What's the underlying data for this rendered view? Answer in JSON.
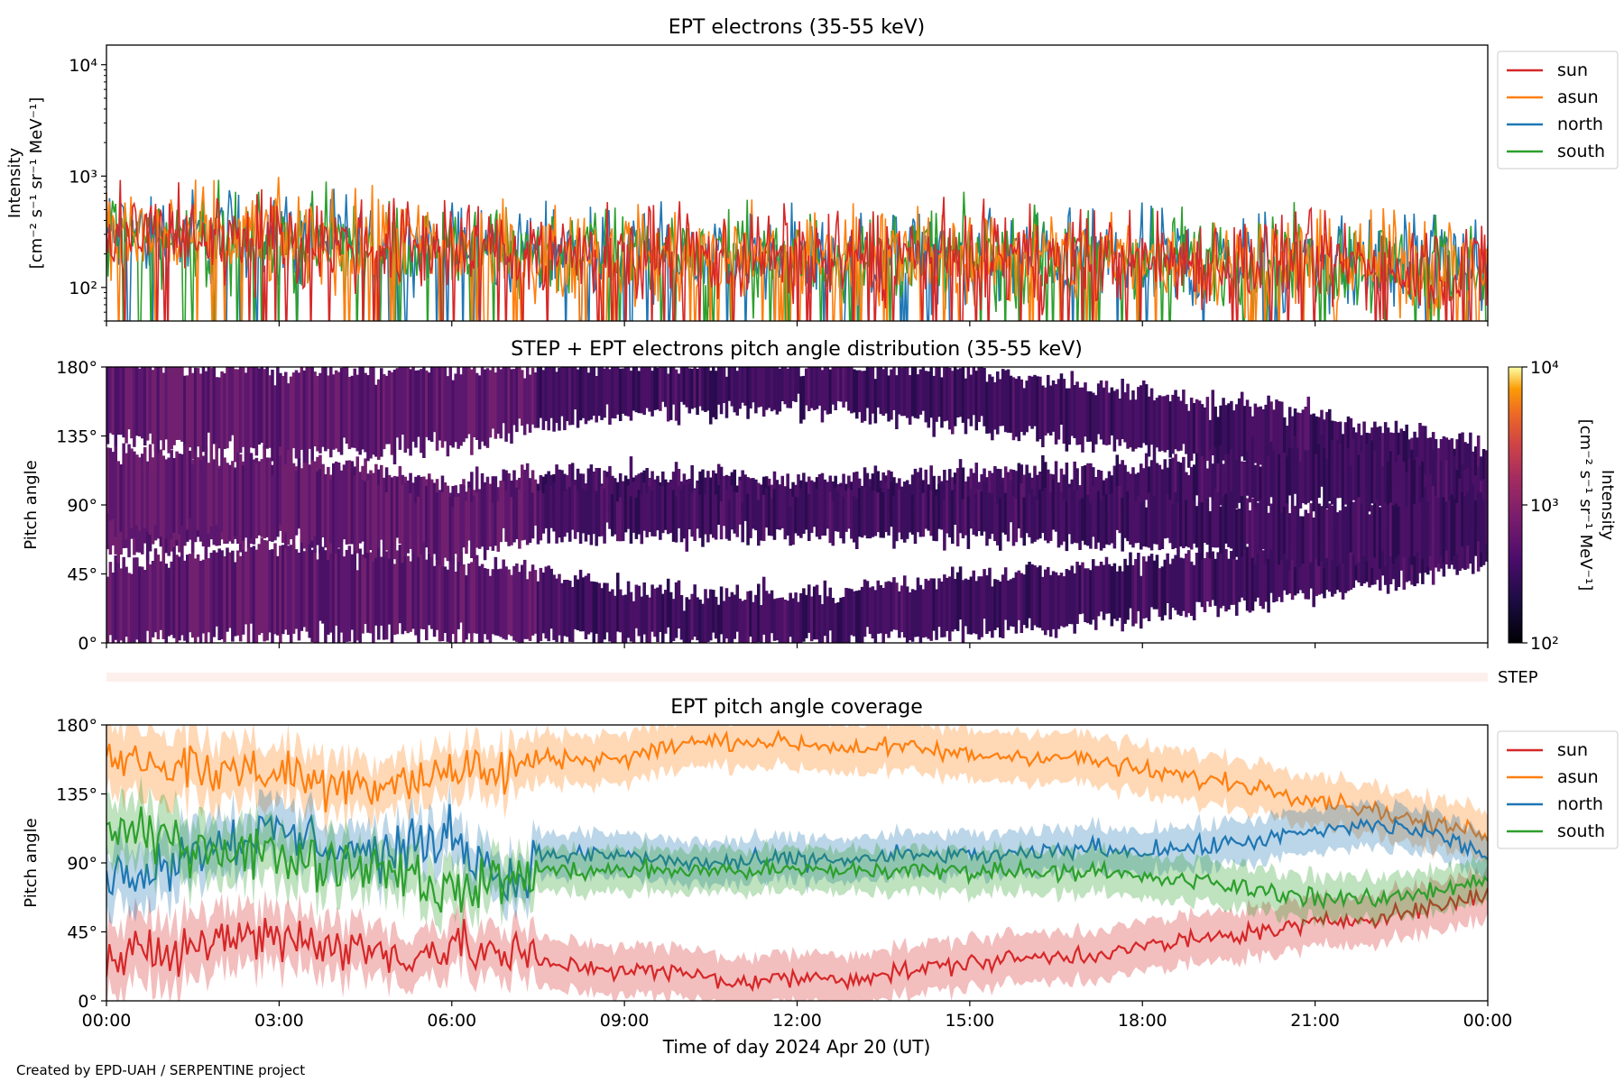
{
  "figure": {
    "footer": "Created by EPD-UAH / SERPENTINE project",
    "xlabel": "Time of day 2024 Apr 20 (UT)",
    "x_ticks": [
      "00:00",
      "03:00",
      "06:00",
      "09:00",
      "12:00",
      "15:00",
      "18:00",
      "21:00",
      "00:00"
    ],
    "x_range_hours": [
      0,
      24
    ]
  },
  "chart_data": [
    {
      "type": "line",
      "title": "EPT electrons (35-55 keV)",
      "ylabel": "Intensity",
      "yunit": "[cm⁻² s⁻¹ sr⁻¹ MeV⁻¹]",
      "yscale": "log",
      "ylim": [
        50,
        15000
      ],
      "y_ticks": [
        {
          "value": 100,
          "label": "10²"
        },
        {
          "value": 1000,
          "label": "10³"
        },
        {
          "value": 10000,
          "label": "10⁴"
        }
      ],
      "legend_position": "outside-right",
      "series": [
        {
          "name": "sun",
          "color": "#d62728"
        },
        {
          "name": "asun",
          "color": "#ff7f0e"
        },
        {
          "name": "north",
          "color": "#1f77b4"
        },
        {
          "name": "south",
          "color": "#2ca02c"
        }
      ],
      "typical_intensity": {
        "x_hours": [
          0,
          3,
          6,
          9,
          12,
          15,
          18,
          21,
          24
        ],
        "median": [
          300,
          280,
          230,
          200,
          190,
          190,
          180,
          170,
          150
        ],
        "peak": [
          1000,
          1000,
          700,
          600,
          650,
          800,
          650,
          600,
          400
        ]
      }
    },
    {
      "type": "heatmap",
      "title": "STEP + EPT electrons pitch angle distribution (35-55 keV)",
      "ylabel": "Pitch angle",
      "ylim": [
        0,
        180
      ],
      "y_ticks": [
        "0°",
        "45°",
        "90°",
        "135°",
        "180°"
      ],
      "colorbar": {
        "label": "Intensity",
        "unit": "[cm⁻² s⁻¹ sr⁻¹ MeV⁻¹]",
        "scale": "log",
        "range": [
          100,
          10000
        ],
        "ticks": [
          {
            "value": 100,
            "label": "10²"
          },
          {
            "value": 1000,
            "label": "10³"
          },
          {
            "value": 10000,
            "label": "10⁴"
          }
        ]
      },
      "bands": [
        {
          "name": "sun",
          "x_hours": [
            0,
            3,
            6,
            7.5,
            9,
            12,
            15,
            18,
            21,
            24
          ],
          "center": [
            25,
            35,
            30,
            25,
            18,
            15,
            25,
            35,
            50,
            70
          ],
          "halfwidth": [
            25,
            28,
            25,
            22,
            16,
            16,
            18,
            18,
            18,
            18
          ]
        },
        {
          "name": "asun",
          "x_hours": [
            0,
            3,
            6,
            7.5,
            9,
            12,
            15,
            18,
            21,
            24
          ],
          "center": [
            160,
            150,
            155,
            160,
            165,
            168,
            160,
            145,
            130,
            110
          ],
          "halfwidth": [
            25,
            28,
            25,
            20,
            16,
            14,
            18,
            18,
            18,
            18
          ]
        },
        {
          "name": "north",
          "x_hours": [
            0,
            3,
            6,
            7.5,
            9,
            12,
            15,
            18,
            21,
            24
          ],
          "center": [
            85,
            95,
            85,
            95,
            95,
            92,
            95,
            100,
            110,
            95
          ],
          "halfwidth": [
            25,
            25,
            20,
            15,
            15,
            14,
            15,
            15,
            18,
            18
          ]
        },
        {
          "name": "south",
          "x_hours": [
            0,
            3,
            6,
            7.5,
            9,
            12,
            15,
            18,
            21,
            24
          ],
          "center": [
            100,
            95,
            75,
            85,
            85,
            85,
            85,
            80,
            70,
            80
          ],
          "halfwidth": [
            25,
            25,
            20,
            15,
            15,
            14,
            15,
            15,
            18,
            18
          ]
        }
      ],
      "step_strip_label": "STEP"
    },
    {
      "type": "line",
      "title": "EPT pitch angle coverage",
      "ylabel": "Pitch angle",
      "ylim": [
        0,
        180
      ],
      "y_ticks": [
        "0°",
        "45°",
        "90°",
        "135°",
        "180°"
      ],
      "legend_position": "outside-right",
      "series": [
        {
          "name": "sun",
          "color": "#d62728",
          "x_hours": [
            0,
            1,
            2,
            3,
            4,
            5,
            6,
            7,
            7.5,
            9,
            10,
            11,
            12,
            13,
            14,
            15,
            16,
            17,
            18,
            19,
            20,
            21,
            22,
            23,
            24
          ],
          "center": [
            25,
            30,
            40,
            45,
            35,
            30,
            35,
            30,
            25,
            20,
            18,
            12,
            15,
            15,
            20,
            25,
            28,
            30,
            35,
            40,
            45,
            50,
            55,
            60,
            70
          ],
          "halfwidth": [
            22,
            22,
            20,
            18,
            18,
            16,
            16,
            16,
            16,
            16,
            16,
            16,
            16,
            16,
            16,
            16,
            16,
            16,
            16,
            16,
            16,
            16,
            16,
            16,
            16
          ]
        },
        {
          "name": "asun",
          "color": "#ff7f0e",
          "x_hours": [
            0,
            1,
            2,
            3,
            4,
            5,
            6,
            7,
            7.5,
            9,
            10,
            11,
            12,
            13,
            14,
            15,
            16,
            17,
            18,
            19,
            20,
            21,
            22,
            23,
            24
          ],
          "center": [
            160,
            155,
            150,
            150,
            140,
            145,
            150,
            150,
            158,
            158,
            168,
            170,
            168,
            165,
            165,
            160,
            160,
            158,
            150,
            145,
            140,
            132,
            125,
            115,
            110
          ],
          "halfwidth": [
            22,
            22,
            20,
            18,
            18,
            16,
            16,
            16,
            16,
            16,
            16,
            16,
            16,
            16,
            16,
            16,
            16,
            16,
            16,
            16,
            16,
            16,
            16,
            16,
            16
          ]
        },
        {
          "name": "north",
          "color": "#1f77b4",
          "x_hours": [
            0,
            1,
            2,
            3,
            4,
            5,
            6,
            7,
            7.5,
            9,
            10,
            11,
            12,
            13,
            14,
            15,
            16,
            17,
            18,
            19,
            20,
            21,
            22,
            23,
            24
          ],
          "center": [
            80,
            90,
            105,
            110,
            100,
            95,
            110,
            75,
            95,
            95,
            90,
            90,
            92,
            92,
            95,
            95,
            95,
            100,
            98,
            100,
            105,
            110,
            115,
            110,
            95
          ],
          "halfwidth": [
            20,
            20,
            18,
            18,
            16,
            15,
            15,
            15,
            14,
            14,
            14,
            14,
            14,
            14,
            14,
            14,
            14,
            14,
            14,
            14,
            14,
            14,
            14,
            14,
            14
          ]
        },
        {
          "name": "south",
          "color": "#2ca02c",
          "x_hours": [
            0,
            1,
            2,
            3,
            4,
            5,
            6,
            7,
            7.5,
            9,
            10,
            11,
            12,
            13,
            14,
            15,
            16,
            17,
            18,
            19,
            20,
            21,
            22,
            23,
            24
          ],
          "center": [
            110,
            105,
            100,
            95,
            90,
            88,
            70,
            80,
            85,
            85,
            85,
            85,
            85,
            85,
            85,
            85,
            85,
            85,
            80,
            78,
            72,
            68,
            65,
            72,
            80
          ],
          "halfwidth": [
            20,
            20,
            18,
            18,
            16,
            15,
            15,
            15,
            14,
            14,
            14,
            14,
            14,
            14,
            14,
            14,
            14,
            14,
            14,
            14,
            14,
            14,
            14,
            14,
            14
          ]
        }
      ]
    }
  ]
}
